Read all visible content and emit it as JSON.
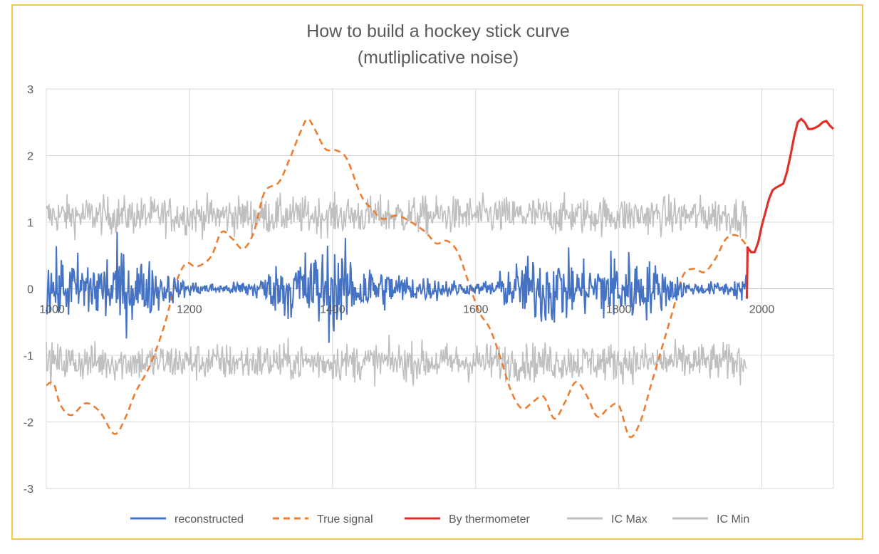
{
  "chart_data": {
    "type": "line",
    "title": "How to build a hockey stick curve",
    "subtitle": "(mutliplicative noise)",
    "xlim": [
      1000,
      2100
    ],
    "ylim": [
      -3,
      3
    ],
    "x_ticks": [
      "1000",
      "1200",
      "1400",
      "1600",
      "1800",
      "2000"
    ],
    "y_ticks": [
      "3",
      "2",
      "1",
      "0",
      "-1",
      "-2",
      "-3"
    ],
    "grid": true,
    "legend_position": "bottom",
    "series": [
      {
        "name": "reconstructed",
        "color": "#4472c4",
        "style": "solid",
        "x_range": [
          1000,
          1979
        ],
        "description_of_envelope": "noisy around 0",
        "envelope_x": [
          1000,
          1050,
          1100,
          1150,
          1190,
          1250,
          1300,
          1350,
          1400,
          1450,
          1500,
          1550,
          1600,
          1650,
          1700,
          1750,
          1800,
          1850,
          1900,
          1950,
          1979
        ],
        "envelope_amp": [
          0.4,
          0.45,
          0.55,
          0.35,
          0.12,
          0.06,
          0.18,
          0.5,
          0.6,
          0.35,
          0.2,
          0.15,
          0.06,
          0.3,
          0.55,
          0.35,
          0.55,
          0.35,
          0.08,
          0.1,
          0.2
        ]
      },
      {
        "name": "True signal",
        "color": "#ed7d31",
        "style": "dashed",
        "x": [
          1000,
          1010,
          1020,
          1035,
          1055,
          1075,
          1095,
          1110,
          1125,
          1145,
          1165,
          1180,
          1195,
          1210,
          1230,
          1245,
          1260,
          1275,
          1290,
          1305,
          1325,
          1340,
          1355,
          1365,
          1375,
          1390,
          1405,
          1420,
          1440,
          1455,
          1470,
          1490,
          1510,
          1530,
          1545,
          1560,
          1575,
          1590,
          1605,
          1620,
          1635,
          1650,
          1665,
          1680,
          1695,
          1710,
          1725,
          1740,
          1755,
          1770,
          1785,
          1800,
          1815,
          1830,
          1845,
          1860,
          1875,
          1890,
          1905,
          1920,
          1935,
          1950,
          1965,
          1979
        ],
        "y": [
          -1.45,
          -1.42,
          -1.75,
          -1.9,
          -1.72,
          -1.85,
          -2.18,
          -1.95,
          -1.55,
          -1.15,
          -0.55,
          0.05,
          0.38,
          0.33,
          0.48,
          0.85,
          0.75,
          0.6,
          0.85,
          1.45,
          1.6,
          1.95,
          2.35,
          2.55,
          2.4,
          2.1,
          2.08,
          1.95,
          1.4,
          1.2,
          1.05,
          1.1,
          1.0,
          0.85,
          0.68,
          0.72,
          0.55,
          0.1,
          -0.35,
          -0.6,
          -1.05,
          -1.55,
          -1.8,
          -1.7,
          -1.62,
          -1.95,
          -1.7,
          -1.4,
          -1.6,
          -1.92,
          -1.8,
          -1.75,
          -2.22,
          -2.0,
          -1.45,
          -0.9,
          -0.35,
          0.2,
          0.3,
          0.25,
          0.45,
          0.75,
          0.8,
          0.65
        ]
      },
      {
        "name": "By thermometer",
        "color": "#e0302a",
        "style": "solid",
        "x": [
          1979,
          1980,
          1985,
          1990,
          1995,
          2000,
          2005,
          2010,
          2015,
          2020,
          2025,
          2030,
          2035,
          2040,
          2045,
          2050,
          2055,
          2060,
          2065,
          2070,
          2075,
          2080,
          2085,
          2090,
          2095,
          2100
        ],
        "y": [
          -0.15,
          0.62,
          0.55,
          0.55,
          0.7,
          0.95,
          1.15,
          1.35,
          1.48,
          1.52,
          1.55,
          1.58,
          1.75,
          2.0,
          2.28,
          2.5,
          2.55,
          2.5,
          2.4,
          2.4,
          2.42,
          2.45,
          2.5,
          2.52,
          2.45,
          2.4
        ],
        "x_visible_range": [
          1979,
          2100
        ]
      },
      {
        "name": "IC Max",
        "color": "#bfbfbf",
        "style": "solid",
        "x_range": [
          1000,
          1979
        ],
        "center": 1.1,
        "noise_amp": 0.2
      },
      {
        "name": "IC Min",
        "color": "#bfbfbf",
        "style": "solid",
        "x_range": [
          1000,
          1979
        ],
        "center": -1.1,
        "noise_amp": 0.2
      }
    ]
  }
}
